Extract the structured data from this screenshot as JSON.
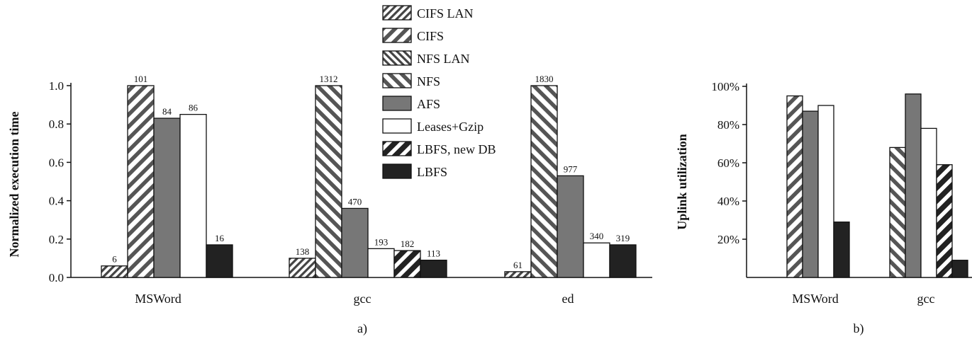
{
  "chart_data": [
    {
      "type": "bar",
      "panel": "a)",
      "categories": [
        "MSWord",
        "gcc",
        "ed"
      ],
      "ylabel": "Normalized execution time",
      "ylim": [
        0,
        1.0
      ],
      "yticks": [
        "0.0",
        "0.2",
        "0.4",
        "0.6",
        "0.8",
        "1.0"
      ],
      "legend": {
        "placement": "top-center"
      },
      "series": [
        {
          "name": "CIFS LAN",
          "pattern": "hatch-dense-fwd",
          "values": [
            0.06,
            0.1,
            0.03
          ],
          "labels": [
            "6",
            "138",
            "61"
          ]
        },
        {
          "name": "CIFS",
          "pattern": "hatch-fwd",
          "values": [
            1.0,
            null,
            null
          ],
          "labels": [
            "101",
            "",
            ""
          ]
        },
        {
          "name": "NFS LAN",
          "pattern": "hatch-dense-back",
          "values": [
            null,
            null,
            null
          ],
          "labels": [
            "",
            "",
            ""
          ]
        },
        {
          "name": "NFS",
          "pattern": "hatch-back",
          "values": [
            null,
            1.0,
            1.0
          ],
          "labels": [
            "",
            "1312",
            "1830"
          ]
        },
        {
          "name": "AFS",
          "pattern": "solid-gray",
          "values": [
            0.83,
            0.36,
            0.53
          ],
          "labels": [
            "84",
            "470",
            "977"
          ]
        },
        {
          "name": "Leases+Gzip",
          "pattern": "white",
          "values": [
            0.85,
            0.15,
            0.18
          ],
          "labels": [
            "86",
            "193",
            "340"
          ]
        },
        {
          "name": "LBFS, new DB",
          "pattern": "hatch-bold-fwd",
          "values": [
            null,
            0.14,
            null
          ],
          "labels": [
            "",
            "182",
            ""
          ]
        },
        {
          "name": "LBFS",
          "pattern": "solid-dark",
          "values": [
            0.17,
            0.09,
            0.17
          ],
          "labels": [
            "16",
            "113",
            "319"
          ]
        }
      ],
      "colors": {
        "gray": "#777777",
        "dark": "#222222"
      }
    },
    {
      "type": "bar",
      "panel": "b)",
      "categories": [
        "MSWord",
        "gcc"
      ],
      "ylabel": "Uplink utilization",
      "ylim": [
        0,
        100
      ],
      "yticks": [
        "20%",
        "40%",
        "60%",
        "80%",
        "100%"
      ],
      "series": [
        {
          "name": "CIFS",
          "pattern": "hatch-fwd",
          "values": [
            95,
            null
          ]
        },
        {
          "name": "NFS",
          "pattern": "hatch-back",
          "values": [
            null,
            68
          ]
        },
        {
          "name": "AFS",
          "pattern": "solid-gray",
          "values": [
            87,
            96
          ]
        },
        {
          "name": "Leases+Gzip",
          "pattern": "white",
          "values": [
            90,
            78
          ]
        },
        {
          "name": "LBFS, new DB",
          "pattern": "hatch-bold-fwd",
          "values": [
            null,
            59
          ]
        },
        {
          "name": "LBFS",
          "pattern": "solid-dark",
          "values": [
            29,
            9
          ]
        }
      ]
    }
  ]
}
